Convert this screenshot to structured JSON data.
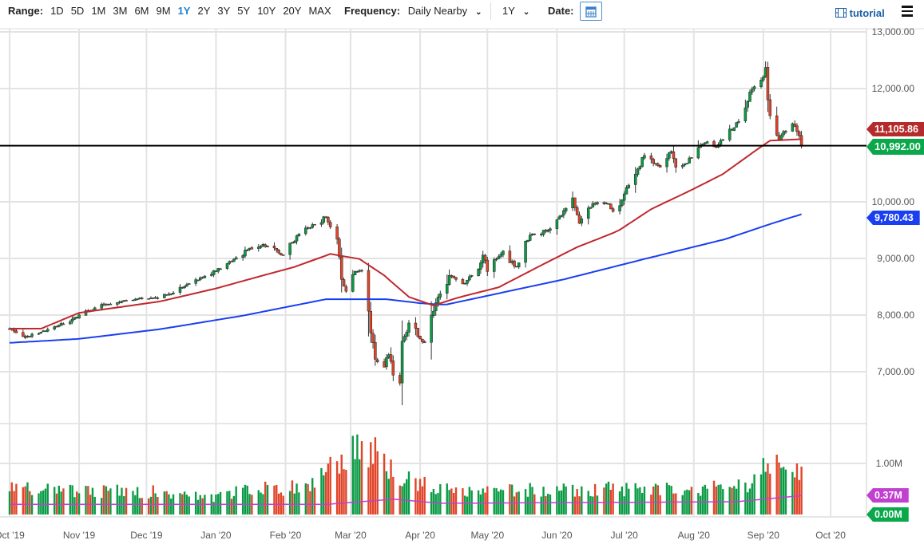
{
  "toolbar": {
    "range_label": "Range:",
    "ranges": [
      "1D",
      "5D",
      "1M",
      "3M",
      "6M",
      "9M",
      "1Y",
      "2Y",
      "3Y",
      "5Y",
      "10Y",
      "20Y",
      "MAX"
    ],
    "active_range": "1Y",
    "frequency_label": "Frequency:",
    "frequency_value": "Daily Nearby",
    "period_value": "1Y",
    "date_label": "Date:",
    "tutorial_label": "tutorial"
  },
  "colors": {
    "up": "#0a9b45",
    "down": "#e0452a",
    "ma50": "#c0282e",
    "ma200": "#1a3ff0",
    "vol_ma": "#c040d0",
    "last_price": "#0aa84b"
  },
  "chart_data": {
    "type": "candlestick",
    "price_axis": {
      "min": 6500,
      "max": 13000,
      "ticks": [
        "13,000.00",
        "12,000.00",
        "10,000.00",
        "9,000.00",
        "8,000.00",
        "7,000.00"
      ],
      "tick_values": [
        13000,
        12000,
        10000,
        9000,
        8000,
        7000
      ]
    },
    "volume_axis": {
      "ticks": [
        "1.00M"
      ],
      "tick_values": [
        1.0
      ]
    },
    "x_ticks": [
      "Oct '19",
      "Nov '19",
      "Dec '19",
      "Jan '20",
      "Feb '20",
      "Mar '20",
      "Apr '20",
      "May '20",
      "Jun '20",
      "Jul '20",
      "Aug '20",
      "Sep '20",
      "Oct '20"
    ],
    "x_tick_dates": [
      "2019-10-01",
      "2019-11-01",
      "2019-12-01",
      "2020-01-01",
      "2020-02-01",
      "2020-03-01",
      "2020-04-01",
      "2020-05-01",
      "2020-06-01",
      "2020-07-01",
      "2020-08-01",
      "2020-09-01",
      "2020-10-01"
    ],
    "close_anchors": [
      [
        "2019-10-01",
        7760
      ],
      [
        "2019-10-08",
        7600
      ],
      [
        "2019-10-15",
        7700
      ],
      [
        "2019-10-22",
        7800
      ],
      [
        "2019-10-29",
        7930
      ],
      [
        "2019-11-05",
        8070
      ],
      [
        "2019-11-12",
        8180
      ],
      [
        "2019-11-19",
        8230
      ],
      [
        "2019-11-26",
        8280
      ],
      [
        "2019-12-03",
        8300
      ],
      [
        "2019-12-10",
        8350
      ],
      [
        "2019-12-17",
        8480
      ],
      [
        "2019-12-24",
        8620
      ],
      [
        "2020-01-01",
        8780
      ],
      [
        "2020-01-08",
        8950
      ],
      [
        "2020-01-15",
        9150
      ],
      [
        "2020-01-22",
        9250
      ],
      [
        "2020-01-31",
        9060
      ],
      [
        "2020-02-07",
        9430
      ],
      [
        "2020-02-14",
        9600
      ],
      [
        "2020-02-19",
        9730
      ],
      [
        "2020-02-24",
        9340
      ],
      [
        "2020-02-26",
        8630
      ],
      [
        "2020-02-28",
        8420
      ],
      [
        "2020-03-03",
        8770
      ],
      [
        "2020-03-06",
        8780
      ],
      [
        "2020-03-09",
        8070
      ],
      [
        "2020-03-12",
        7220
      ],
      [
        "2020-03-16",
        7080
      ],
      [
        "2020-03-18",
        7300
      ],
      [
        "2020-03-20",
        6940
      ],
      [
        "2020-03-23",
        6800
      ],
      [
        "2020-03-24",
        7540
      ],
      [
        "2020-03-27",
        7860
      ],
      [
        "2020-04-01",
        7580
      ],
      [
        "2020-04-03",
        7510
      ],
      [
        "2020-04-06",
        8000
      ],
      [
        "2020-04-09",
        8320
      ],
      [
        "2020-04-14",
        8700
      ],
      [
        "2020-04-17",
        8630
      ],
      [
        "2020-04-21",
        8560
      ],
      [
        "2020-04-24",
        8700
      ],
      [
        "2020-04-29",
        9060
      ],
      [
        "2020-05-01",
        8770
      ],
      [
        "2020-05-08",
        9130
      ],
      [
        "2020-05-14",
        8850
      ],
      [
        "2020-05-20",
        9410
      ],
      [
        "2020-05-27",
        9480
      ],
      [
        "2020-06-03",
        9760
      ],
      [
        "2020-06-08",
        10070
      ],
      [
        "2020-06-11",
        9620
      ],
      [
        "2020-06-17",
        9970
      ],
      [
        "2020-06-24",
        9970
      ],
      [
        "2020-06-26",
        9830
      ],
      [
        "2020-07-01",
        10140
      ],
      [
        "2020-07-07",
        10580
      ],
      [
        "2020-07-10",
        10820
      ],
      [
        "2020-07-14",
        10680
      ],
      [
        "2020-07-17",
        10610
      ],
      [
        "2020-07-22",
        10890
      ],
      [
        "2020-07-24",
        10610
      ],
      [
        "2020-07-29",
        10680
      ],
      [
        "2020-08-03",
        10960
      ],
      [
        "2020-08-07",
        11060
      ],
      [
        "2020-08-11",
        10960
      ],
      [
        "2020-08-14",
        11100
      ],
      [
        "2020-08-19",
        11310
      ],
      [
        "2020-08-24",
        11660
      ],
      [
        "2020-08-27",
        11990
      ],
      [
        "2020-08-31",
        12150
      ],
      [
        "2020-09-02",
        12370
      ],
      [
        "2020-09-03",
        11800
      ],
      [
        "2020-09-04",
        11520
      ],
      [
        "2020-09-08",
        11100
      ],
      [
        "2020-09-10",
        11240
      ],
      [
        "2020-09-14",
        11380
      ],
      [
        "2020-09-16",
        11240
      ],
      [
        "2020-09-18",
        10992
      ]
    ],
    "ma50_anchors": [
      [
        "2019-10-01",
        7760
      ],
      [
        "2019-10-15",
        7760
      ],
      [
        "2019-11-01",
        8040
      ],
      [
        "2019-12-07",
        8240
      ],
      [
        "2020-01-01",
        8470
      ],
      [
        "2020-01-22",
        8700
      ],
      [
        "2020-02-05",
        8850
      ],
      [
        "2020-02-21",
        9080
      ],
      [
        "2020-03-05",
        8990
      ],
      [
        "2020-03-16",
        8700
      ],
      [
        "2020-03-27",
        8320
      ],
      [
        "2020-04-07",
        8170
      ],
      [
        "2020-04-18",
        8310
      ],
      [
        "2020-05-06",
        8490
      ],
      [
        "2020-05-27",
        8920
      ],
      [
        "2020-06-10",
        9200
      ],
      [
        "2020-06-28",
        9480
      ],
      [
        "2020-07-13",
        9870
      ],
      [
        "2020-07-31",
        10210
      ],
      [
        "2020-08-14",
        10490
      ],
      [
        "2020-08-28",
        10890
      ],
      [
        "2020-09-04",
        11080
      ],
      [
        "2020-09-18",
        11106
      ]
    ],
    "ma200_anchors": [
      [
        "2019-10-01",
        7510
      ],
      [
        "2019-11-01",
        7580
      ],
      [
        "2019-12-07",
        7750
      ],
      [
        "2020-01-13",
        7990
      ],
      [
        "2020-02-19",
        8280
      ],
      [
        "2020-03-17",
        8280
      ],
      [
        "2020-04-01",
        8210
      ],
      [
        "2020-04-12",
        8180
      ],
      [
        "2020-06-04",
        8630
      ],
      [
        "2020-07-10",
        8990
      ],
      [
        "2020-08-15",
        9340
      ],
      [
        "2020-09-05",
        9620
      ],
      [
        "2020-09-18",
        9780
      ]
    ],
    "volume_anchors_m": [
      [
        "2019-10-01",
        0.55
      ],
      [
        "2019-11-01",
        0.45
      ],
      [
        "2019-12-01",
        0.45
      ],
      [
        "2020-01-01",
        0.35
      ],
      [
        "2020-01-20",
        0.55
      ],
      [
        "2020-02-10",
        0.5
      ],
      [
        "2020-02-24",
        1.0
      ],
      [
        "2020-03-05",
        1.4
      ],
      [
        "2020-03-15",
        1.1
      ],
      [
        "2020-03-25",
        0.7
      ],
      [
        "2020-04-10",
        0.55
      ],
      [
        "2020-05-01",
        0.45
      ],
      [
        "2020-06-01",
        0.5
      ],
      [
        "2020-07-01",
        0.5
      ],
      [
        "2020-08-01",
        0.5
      ],
      [
        "2020-08-25",
        0.55
      ],
      [
        "2020-09-03",
        1.05
      ],
      [
        "2020-09-18",
        0.8
      ]
    ],
    "vol_ma_anchors_m": [
      [
        "2019-10-01",
        0.2
      ],
      [
        "2020-02-20",
        0.2
      ],
      [
        "2020-03-20",
        0.3
      ],
      [
        "2020-04-10",
        0.22
      ],
      [
        "2020-08-20",
        0.25
      ],
      [
        "2020-09-18",
        0.37
      ]
    ],
    "last_price_line": 10992,
    "labels": {
      "ma50": "11,105.86",
      "last": "10,992.00",
      "ma200": "9,780.43",
      "vol_ma": "0.37M",
      "vol_last": "0.00M"
    }
  }
}
